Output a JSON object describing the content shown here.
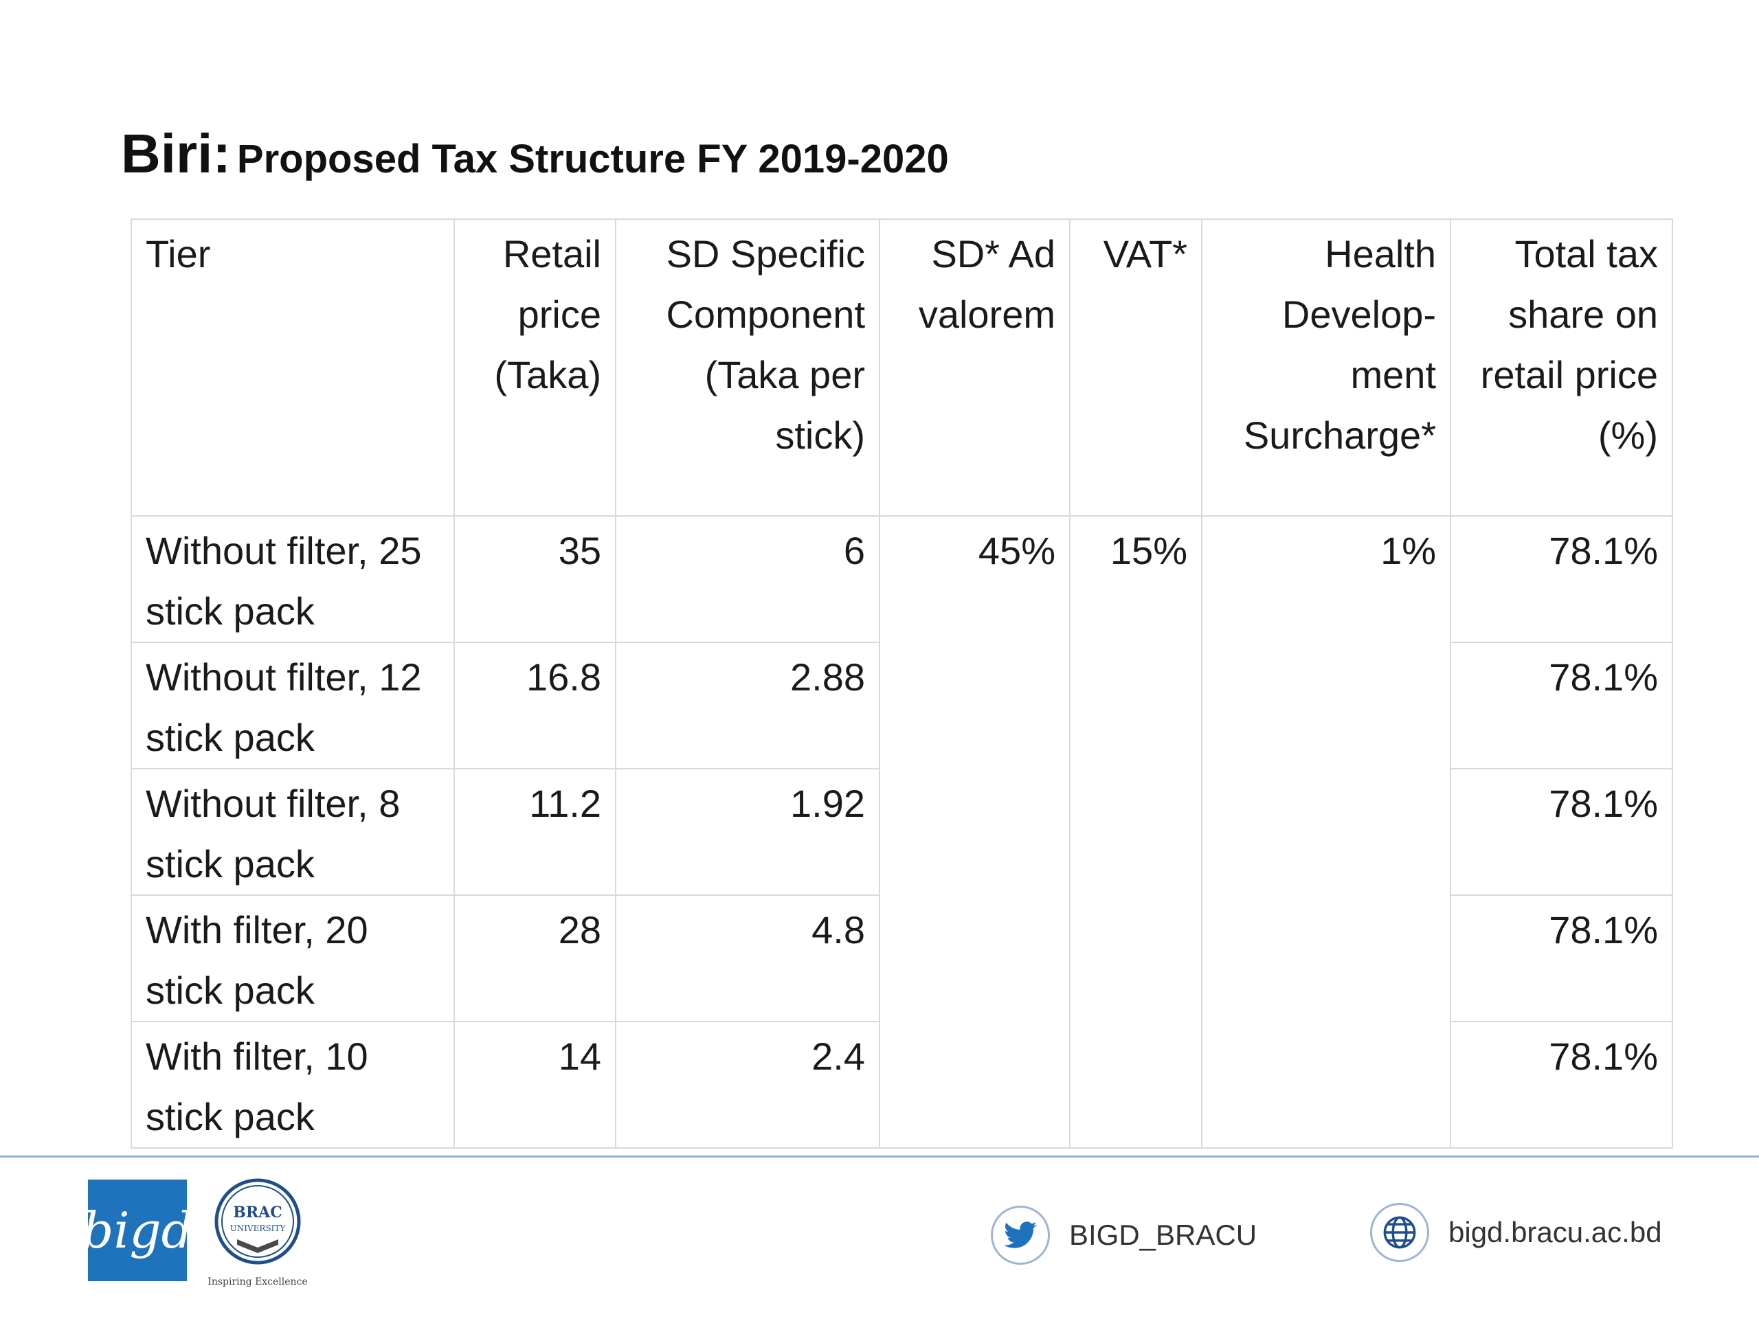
{
  "title": {
    "lead": "Biri:",
    "rest": "Proposed Tax Structure FY 2019-2020"
  },
  "table": {
    "headers": [
      "Tier",
      "Retail price (Taka)",
      "SD Specific Component (Taka per stick)",
      "SD* Ad valorem",
      "VAT*",
      "Health Develop-ment Surcharge*",
      "Total tax share on retail price (%)"
    ],
    "rows": [
      {
        "tier": "Without filter, 25 stick pack",
        "retail": "35",
        "sd_specific": "6",
        "total": "78.1%"
      },
      {
        "tier": "Without filter, 12 stick pack",
        "retail": "16.8",
        "sd_specific": "2.88",
        "total": "78.1%"
      },
      {
        "tier": "Without filter, 8 stick pack",
        "retail": "11.2",
        "sd_specific": "1.92",
        "total": "78.1%"
      },
      {
        "tier": "With filter, 20 stick pack",
        "retail": "28",
        "sd_specific": "4.8",
        "total": "78.1%"
      },
      {
        "tier": "With filter, 10 stick pack",
        "retail": "14",
        "sd_specific": "2.4",
        "total": "78.1%"
      }
    ],
    "shared": {
      "sd_ad_valorem": "45%",
      "vat": "15%",
      "health_surcharge": "1%"
    }
  },
  "footer": {
    "bigd_logo_text": "bigd",
    "brac_logo": {
      "line1": "BRAC",
      "line2": "UNIVERSITY",
      "tagline": "Inspiring Excellence"
    },
    "twitter_handle": "BIGD_BRACU",
    "website": "bigd.bracu.ac.bd",
    "colors": {
      "accent": "#1f73bd",
      "rule": "#8fb0de",
      "border": "#d9d9d9"
    },
    "icons": [
      "twitter-icon",
      "globe-icon"
    ]
  }
}
